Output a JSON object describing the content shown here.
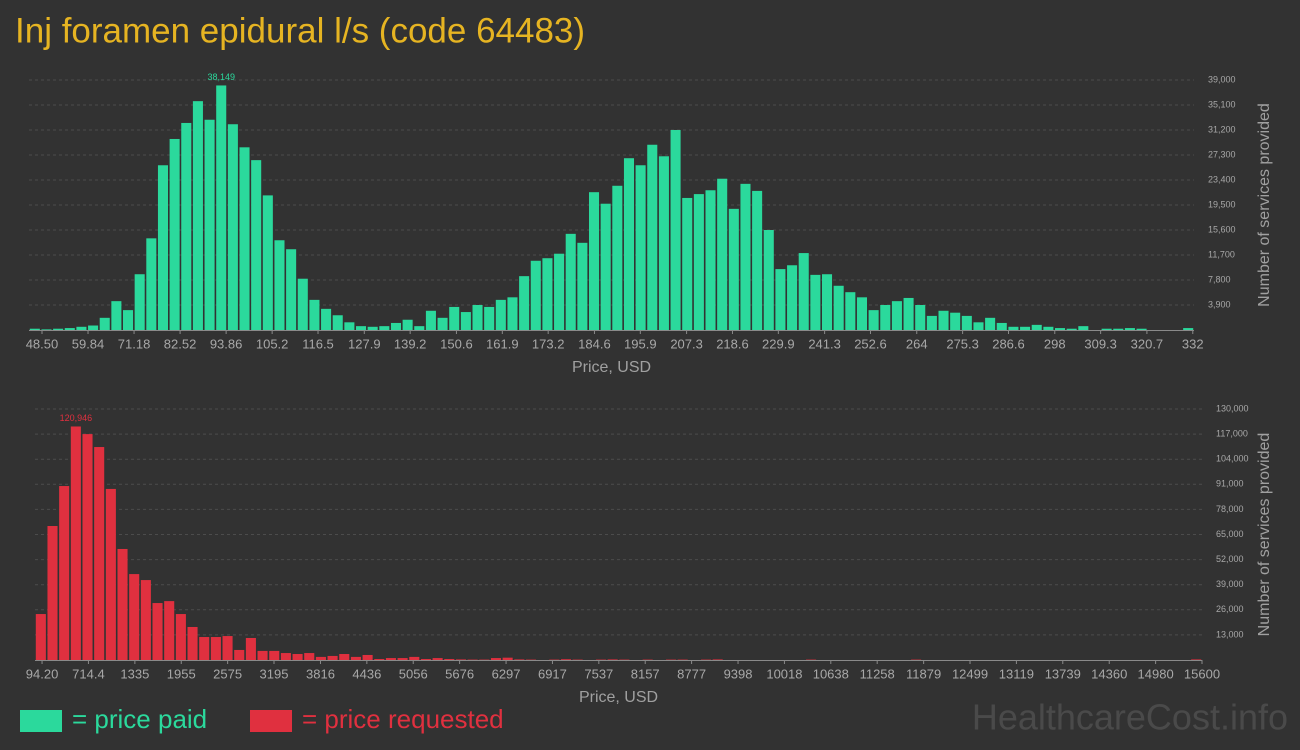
{
  "title": "Inj foramen epidural l/s (code 64483)",
  "watermark": "HealthcareCost.info",
  "chart_data": [
    {
      "type": "histogram",
      "xlabel": "Price, USD",
      "ylabel": "Number of services provided",
      "grid": true,
      "bins": [
        45.3,
        48.17,
        51.04,
        53.91,
        56.78,
        59.65,
        62.52,
        65.39,
        68.26,
        71.13,
        74,
        76.87,
        79.74,
        82.61,
        85.48,
        88.35,
        91.22,
        94.09,
        96.96,
        99.83,
        102.7,
        105.57,
        108.44,
        111.31,
        114.18,
        117.05,
        119.92,
        122.79,
        125.66,
        128.53,
        131.4,
        134.27,
        137.14,
        140.01,
        142.88,
        145.75,
        148.62,
        151.49,
        154.36,
        157.23,
        160.1,
        162.97,
        165.84,
        168.71,
        171.58,
        174.45,
        177.32,
        180.19,
        183.06,
        185.93,
        188.8,
        191.67,
        194.54,
        197.41,
        200.28,
        203.15,
        206.02,
        208.89,
        211.76,
        214.63,
        217.5,
        220.37,
        223.24,
        226.11,
        228.98,
        231.85,
        234.72,
        237.59,
        240.46,
        243.33,
        246.2,
        249.07,
        251.94,
        254.81,
        257.68,
        260.55,
        263.42,
        266.29,
        269.16,
        272.03,
        274.9,
        277.77,
        280.64,
        283.51,
        286.38,
        289.25,
        292.12,
        294.99,
        297.86,
        300.73,
        303.6,
        306.47,
        309.34,
        312.21,
        315.08,
        317.95,
        320.82,
        323.69,
        326.56,
        329.43,
        332.3
      ],
      "series": [
        {
          "name": "= price paid",
          "color": "#2bd99c",
          "values": [
            200,
            100,
            200,
            300,
            500,
            700,
            1900,
            4500,
            3100,
            8700,
            14300,
            25700,
            29800,
            32300,
            35700,
            32800,
            38149,
            32100,
            28500,
            26500,
            21000,
            14000,
            12600,
            8000,
            4700,
            3300,
            2300,
            1200,
            600,
            500,
            600,
            1100,
            1600,
            600,
            3000,
            1900,
            3600,
            2800,
            3900,
            3600,
            4700,
            5100,
            8400,
            10800,
            11200,
            11900,
            15000,
            13600,
            21500,
            19700,
            22500,
            26800,
            25700,
            28900,
            27100,
            31200,
            20600,
            21200,
            21800,
            23600,
            18900,
            22800,
            21700,
            15600,
            9500,
            10100,
            12000,
            8600,
            8700,
            6900,
            5900,
            5100,
            3100,
            3900,
            4500,
            5000,
            3900,
            2200,
            3000,
            2700,
            2200,
            1200,
            1900,
            1100,
            500,
            500,
            800,
            500,
            300,
            200,
            600,
            0,
            200,
            200,
            300,
            200,
            0,
            0,
            0,
            300
          ],
          "value_labels": [
            null,
            null,
            null,
            null,
            null,
            null,
            null,
            null,
            null,
            null,
            null,
            null,
            null,
            null,
            null,
            null,
            "38,149",
            null,
            null,
            null,
            null,
            null,
            null,
            null,
            null,
            null,
            null,
            null,
            null,
            null,
            null,
            null,
            null,
            null,
            null,
            null,
            null,
            null,
            null,
            null,
            null,
            null,
            null,
            null,
            null,
            null,
            null,
            null,
            null,
            null,
            null,
            null,
            null,
            null,
            null,
            null,
            null,
            null,
            null,
            null,
            null,
            null,
            null,
            null,
            null,
            null,
            null,
            null,
            null,
            null,
            null,
            null,
            null,
            null,
            null,
            null,
            null,
            null,
            null,
            null,
            null,
            null,
            null,
            null,
            null,
            null,
            null,
            null,
            null,
            null,
            null,
            null,
            null,
            null,
            null,
            null,
            null,
            null,
            null,
            null
          ]
        }
      ],
      "xlim": [
        45.3,
        332.3
      ],
      "xticks": [
        {
          "value": 48.5,
          "label": "48.50"
        },
        59.84,
        71.18,
        82.52,
        93.86,
        105.2,
        116.5,
        127.9,
        139.2,
        150.6,
        161.9,
        173.2,
        184.6,
        195.9,
        207.3,
        218.6,
        229.9,
        241.3,
        252.6,
        264,
        275.3,
        286.6,
        298,
        309.3,
        320.7,
        332
      ],
      "ylim": [
        0,
        39000
      ],
      "yticks": [
        {
          "value": 3900,
          "label": "3,900"
        },
        {
          "value": 7800,
          "label": "7,800"
        },
        {
          "value": 11700,
          "label": "11,700"
        },
        {
          "value": 15600,
          "label": "15,600"
        },
        {
          "value": 19500,
          "label": "19,500"
        },
        {
          "value": 23400,
          "label": "23,400"
        },
        {
          "value": 27300,
          "label": "27,300"
        },
        {
          "value": 31200,
          "label": "31,200"
        },
        {
          "value": 35100,
          "label": "35,100"
        },
        {
          "value": 39000,
          "label": "39,000"
        }
      ]
    },
    {
      "type": "histogram",
      "xlabel": "Price, USD",
      "ylabel": "Number of services provided",
      "grid": true,
      "bins": [
        0,
        156,
        312,
        468,
        624,
        780,
        936,
        1092,
        1248,
        1404,
        1560,
        1716,
        1872,
        2028,
        2184,
        2340,
        2496,
        2652,
        2808,
        2964,
        3120,
        3276,
        3432,
        3588,
        3744,
        3900,
        4056,
        4212,
        4368,
        4524,
        4680,
        4836,
        4992,
        5148,
        5304,
        5460,
        5616,
        5772,
        5928,
        6084,
        6240,
        6396,
        6552,
        6708,
        6864,
        7020,
        7176,
        7332,
        7488,
        7644,
        7800,
        7956,
        8112,
        8268,
        8424,
        8580,
        8736,
        8892,
        9048,
        9204,
        9360,
        9516,
        9672,
        9828,
        9984,
        10140,
        10296,
        10452,
        10608,
        10764,
        10920,
        11076,
        11232,
        11388,
        11544,
        11700,
        11856,
        12012,
        12168,
        12324,
        12480,
        12636,
        12792,
        12948,
        13104,
        13260,
        13416,
        13572,
        13728,
        13884,
        14040,
        14196,
        14352,
        14508,
        14664,
        14820,
        14976,
        15132,
        15288,
        15444,
        15600
      ],
      "series": [
        {
          "name": "= price requested",
          "color": "#e0303f",
          "values": [
            23800,
            69400,
            90100,
            120946,
            117000,
            110300,
            88600,
            57500,
            44500,
            41400,
            29500,
            30500,
            23800,
            17100,
            11900,
            11900,
            12400,
            5200,
            11400,
            4700,
            4700,
            3600,
            3100,
            3600,
            1600,
            2100,
            3100,
            1600,
            2600,
            500,
            1000,
            1000,
            1600,
            500,
            1000,
            500,
            300,
            200,
            200,
            1000,
            1200,
            300,
            200,
            0,
            200,
            400,
            200,
            0,
            200,
            300,
            200,
            0,
            200,
            0,
            200,
            200,
            0,
            200,
            300,
            0,
            0,
            0,
            0,
            0,
            0,
            0,
            200,
            0,
            0,
            0,
            0,
            0,
            0,
            0,
            0,
            200,
            0,
            0,
            0,
            0,
            0,
            0,
            0,
            0,
            0,
            0,
            0,
            0,
            0,
            0,
            0,
            0,
            0,
            0,
            0,
            0,
            0,
            0,
            0,
            300
          ],
          "value_labels": [
            null,
            null,
            null,
            "120,946",
            null,
            null,
            null,
            null,
            null,
            null,
            null,
            null,
            null,
            null,
            null,
            null,
            null,
            null,
            null,
            null,
            null,
            null,
            null,
            null,
            null,
            null,
            null,
            null,
            null,
            null,
            null,
            null,
            null,
            null,
            null,
            null,
            null,
            null,
            null,
            null,
            null,
            null,
            null,
            null,
            null,
            null,
            null,
            null,
            null,
            null,
            null,
            null,
            null,
            null,
            null,
            null,
            null,
            null,
            null,
            null,
            null,
            null,
            null,
            null,
            null,
            null,
            null,
            null,
            null,
            null,
            null,
            null,
            null,
            null,
            null,
            null,
            null,
            null,
            null,
            null,
            null,
            null,
            null,
            null,
            null,
            null,
            null,
            null,
            null,
            null,
            null,
            null,
            null,
            null,
            null,
            null,
            null,
            null,
            null,
            null
          ]
        }
      ],
      "xlim": [
        0,
        15600
      ],
      "xticks": [
        {
          "value": 94.2,
          "label": "94.20"
        },
        714.4,
        1335,
        1955,
        2575,
        3195,
        3816,
        4436,
        5056,
        5676,
        6297,
        6917,
        7537,
        8157,
        8777,
        9398,
        10018,
        10638,
        11258,
        11879,
        12499,
        13119,
        13739,
        14360,
        14980,
        15600
      ],
      "ylim": [
        0,
        130000
      ],
      "yticks": [
        {
          "value": 13000,
          "label": "13,000"
        },
        {
          "value": 26000,
          "label": "26,000"
        },
        {
          "value": 39000,
          "label": "39,000"
        },
        {
          "value": 52000,
          "label": "52,000"
        },
        {
          "value": 65000,
          "label": "65,000"
        },
        {
          "value": 78000,
          "label": "78,000"
        },
        {
          "value": 91000,
          "label": "91,000"
        },
        {
          "value": 104000,
          "label": "104,000"
        },
        {
          "value": 117000,
          "label": "117,000"
        },
        {
          "value": 130000,
          "label": "130,000"
        }
      ]
    }
  ]
}
